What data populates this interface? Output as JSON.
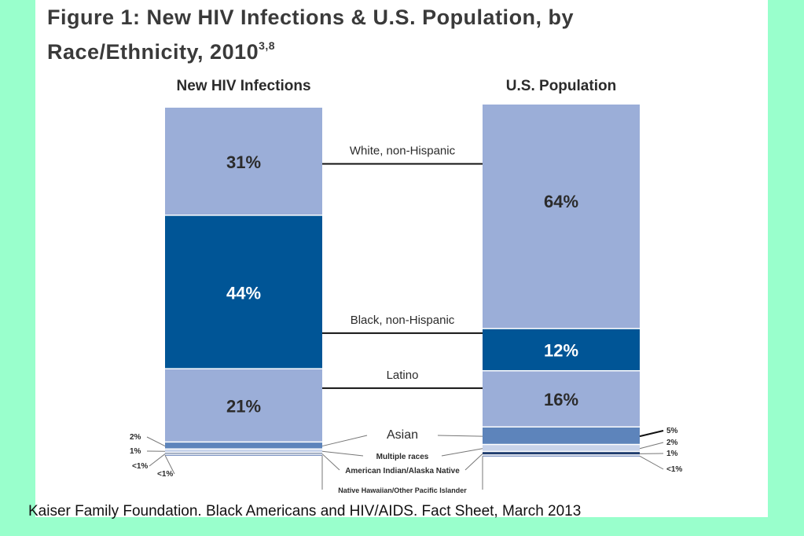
{
  "figure": {
    "title_line1": "Figure 1: New HIV Infections & U.S. Population, by",
    "title_line2": "Race/Ethnicity, 2010",
    "title_superscript": "3,8"
  },
  "caption": "Kaiser Family Foundation. Black Americans and HIV/AIDS. Fact Sheet, March 2013",
  "chart_data": {
    "type": "bar",
    "stacked": true,
    "percent_stacked": true,
    "categories": [
      "New HIV Infections",
      "U.S. Population"
    ],
    "series": [
      {
        "name": "White, non-Hispanic",
        "values": [
          31,
          64
        ],
        "labels": [
          "31%",
          "64%"
        ],
        "color": "#9baed8"
      },
      {
        "name": "Black, non-Hispanic",
        "values": [
          44,
          12
        ],
        "labels": [
          "44%",
          "12%"
        ],
        "color": "#005596"
      },
      {
        "name": "Latino",
        "values": [
          21,
          16
        ],
        "labels": [
          "21%",
          "16%"
        ],
        "color": "#9baed8"
      },
      {
        "name": "Asian",
        "values": [
          2,
          5
        ],
        "labels": [
          "2%",
          "5%"
        ],
        "color": "#5d84bb"
      },
      {
        "name": "Multiple races",
        "values": [
          1,
          2
        ],
        "labels": [
          "1%",
          "2%"
        ],
        "color": "#c7d3ea"
      },
      {
        "name": "American Indian/Alaska Native",
        "values": [
          0.5,
          1
        ],
        "labels": [
          "<1%",
          "1%"
        ],
        "color": "#1f3c6e"
      },
      {
        "name": "Native Hawaiian/Other Pacific Islander",
        "values": [
          0.3,
          0.3
        ],
        "labels": [
          "<1%",
          "<1%"
        ],
        "color": "#7f95c3"
      }
    ],
    "inline_label_series": [
      0,
      1,
      2
    ]
  }
}
